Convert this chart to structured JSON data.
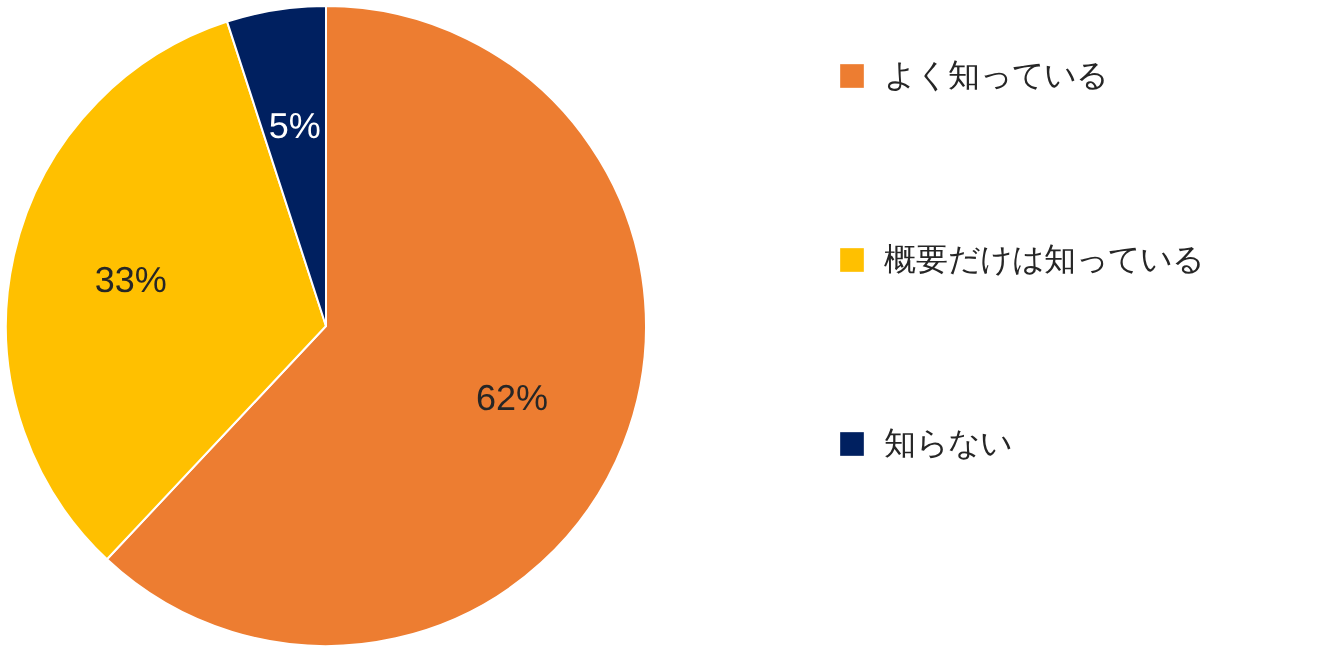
{
  "chart_data": {
    "type": "pie",
    "categories": [
      "よく知っている",
      "概要だけは知っている",
      "知らない"
    ],
    "values": [
      62,
      33,
      5
    ],
    "colors": [
      "#ed7d31",
      "#ffc000",
      "#002060"
    ],
    "value_labels": [
      "62%",
      "33%",
      "5%"
    ],
    "legend": "right"
  }
}
